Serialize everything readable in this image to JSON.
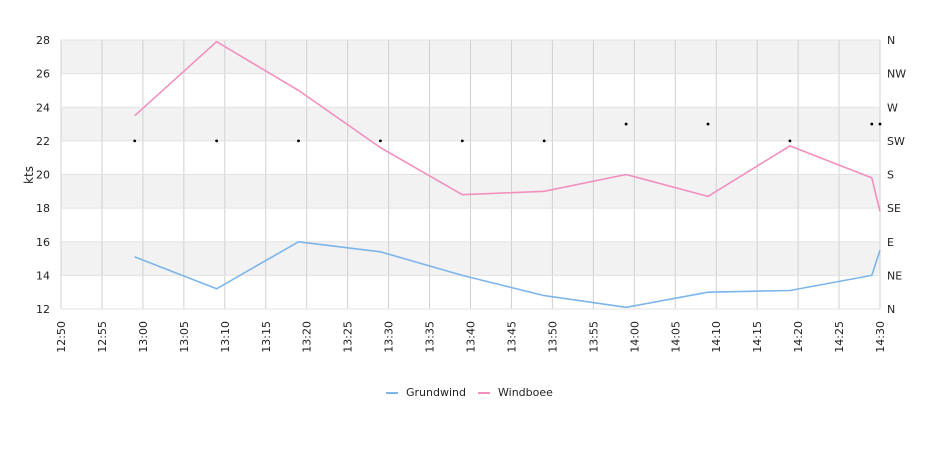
{
  "chart_data": {
    "type": "line",
    "ylabel": "kts",
    "ylim": [
      12,
      28
    ],
    "yticks": [
      "12",
      "14",
      "16",
      "18",
      "20",
      "22",
      "24",
      "26",
      "28"
    ],
    "x_range": [
      "12:50",
      "14:30"
    ],
    "xticks": [
      "12:50",
      "12:55",
      "13:00",
      "13:05",
      "13:10",
      "13:15",
      "13:20",
      "13:25",
      "13:30",
      "13:35",
      "13:40",
      "13:45",
      "13:50",
      "13:55",
      "14:00",
      "14:05",
      "14:10",
      "14:15",
      "14:20",
      "14:25",
      "14:30"
    ],
    "direction_ticks": [
      "N",
      "NE",
      "E",
      "SE",
      "S",
      "SW",
      "W",
      "NW",
      "N"
    ],
    "grid": true,
    "legend_position": "bottom-center",
    "series": [
      {
        "name": "Grundwind",
        "color": "#7cb5ec",
        "x": [
          "12:59",
          "13:09",
          "13:19",
          "13:29",
          "13:39",
          "13:49",
          "13:59",
          "14:09",
          "14:19",
          "14:29",
          "14:30"
        ],
        "values": [
          15.1,
          13.2,
          16.0,
          15.4,
          14.0,
          12.8,
          12.1,
          13.0,
          13.1,
          14.0,
          15.5
        ]
      },
      {
        "name": "Windboee",
        "color": "#f28fbe",
        "x": [
          "12:59",
          "13:09",
          "13:19",
          "13:29",
          "13:39",
          "13:49",
          "13:59",
          "14:09",
          "14:19",
          "14:29",
          "14:30"
        ],
        "values": [
          23.5,
          27.9,
          25.0,
          21.6,
          18.8,
          19.0,
          20.0,
          18.7,
          21.7,
          19.8,
          17.8
        ]
      }
    ],
    "wind_direction": {
      "x": [
        "12:59",
        "13:09",
        "13:19",
        "13:29",
        "13:39",
        "13:49",
        "13:59",
        "14:09",
        "14:19",
        "14:29",
        "14:30"
      ],
      "values": [
        "SW",
        "SW",
        "SW",
        "SW",
        "SW",
        "SW",
        "SW/W",
        "SW/W",
        "SW",
        "SW/W",
        "SW/W"
      ]
    }
  }
}
